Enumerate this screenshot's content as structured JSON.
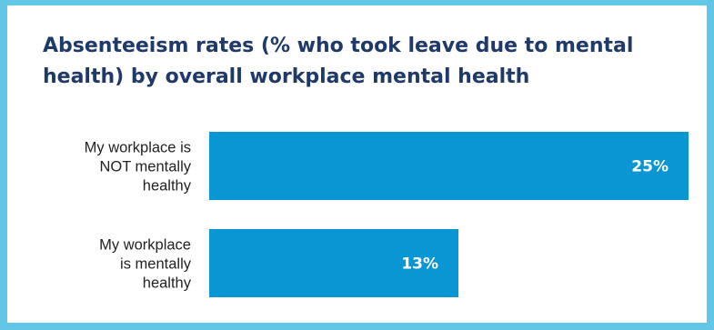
{
  "colors": {
    "border": "#62c6e6",
    "title": "#1f3a68",
    "bar": "#0a96d3",
    "bar_text": "#ffffff"
  },
  "chart_data": {
    "type": "bar",
    "orientation": "horizontal",
    "title": "Absenteeism rates (% who took leave due to mental health) by overall workplace mental health",
    "categories": [
      [
        "My workplace is",
        "NOT mentally",
        "healthy"
      ],
      [
        "My workplace",
        "is mentally",
        "healthy"
      ]
    ],
    "values": [
      25,
      13
    ],
    "value_labels": [
      "25%",
      "13%"
    ],
    "xlim": [
      0,
      25
    ],
    "grid": false,
    "legend": "none"
  }
}
